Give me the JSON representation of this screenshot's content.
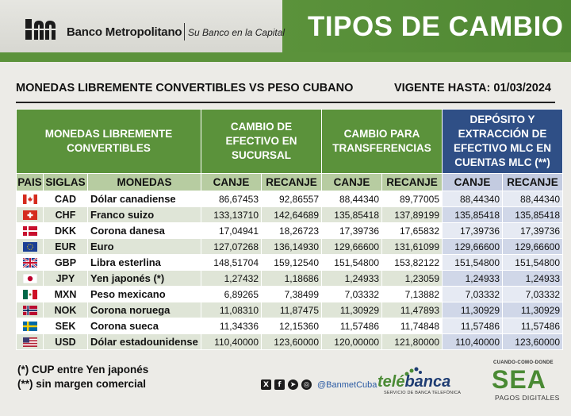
{
  "header": {
    "brand_name": "Banco Metropolitano",
    "brand_slogan": "Su Banco en la Capital",
    "page_title": "TIPOS DE CAMBIO",
    "accent_color": "#5b923b"
  },
  "subtitle": "MONEDAS LIBREMENTE CONVERTIBLES VS PESO CUBANO",
  "valid_until": "VIGENTE HASTA: 01/03/2024",
  "table": {
    "groups": {
      "currencies": "MONEDAS LIBREMENTE CONVERTIBLES",
      "cash": "CAMBIO DE EFECTIVO EN SUCURSAL",
      "transfers": "CAMBIO PARA TRANSFERENCIAS",
      "mlc": "DEPÓSITO Y EXTRACCIÓN DE EFECTIVO MLC EN CUENTAS MLC (**)"
    },
    "columns": {
      "country": "PAIS",
      "code": "SIGLAS",
      "currency": "MONEDAS",
      "buy": "CANJE",
      "sell": "RECANJE"
    },
    "rows": [
      {
        "flag": "canada-flag",
        "code": "CAD",
        "name": "Dólar canadiense",
        "cash_buy": "86,67453",
        "cash_sell": "92,86557",
        "tr_buy": "88,44340",
        "tr_sell": "89,77005",
        "mlc_buy": "88,44340",
        "mlc_sell": "88,44340"
      },
      {
        "flag": "switzerland-flag",
        "code": "CHF",
        "name": "Franco suizo",
        "cash_buy": "133,13710",
        "cash_sell": "142,64689",
        "tr_buy": "135,85418",
        "tr_sell": "137,89199",
        "mlc_buy": "135,85418",
        "mlc_sell": "135,85418"
      },
      {
        "flag": "denmark-flag",
        "code": "DKK",
        "name": "Corona danesa",
        "cash_buy": "17,04941",
        "cash_sell": "18,26723",
        "tr_buy": "17,39736",
        "tr_sell": "17,65832",
        "mlc_buy": "17,39736",
        "mlc_sell": "17,39736"
      },
      {
        "flag": "eu-flag",
        "code": "EUR",
        "name": "Euro",
        "cash_buy": "127,07268",
        "cash_sell": "136,14930",
        "tr_buy": "129,66600",
        "tr_sell": "131,61099",
        "mlc_buy": "129,66600",
        "mlc_sell": "129,66600"
      },
      {
        "flag": "uk-flag",
        "code": "GBP",
        "name": "Libra esterlina",
        "cash_buy": "148,51704",
        "cash_sell": "159,12540",
        "tr_buy": "151,54800",
        "tr_sell": "153,82122",
        "mlc_buy": "151,54800",
        "mlc_sell": "151,54800"
      },
      {
        "flag": "japan-flag",
        "code": "JPY",
        "name": "Yen japonés (*)",
        "cash_buy": "1,27432",
        "cash_sell": "1,18686",
        "tr_buy": "1,24933",
        "tr_sell": "1,23059",
        "mlc_buy": "1,24933",
        "mlc_sell": "1,24933"
      },
      {
        "flag": "mexico-flag",
        "code": "MXN",
        "name": "Peso mexicano",
        "cash_buy": "6,89265",
        "cash_sell": "7,38499",
        "tr_buy": "7,03332",
        "tr_sell": "7,13882",
        "mlc_buy": "7,03332",
        "mlc_sell": "7,03332"
      },
      {
        "flag": "norway-flag",
        "code": "NOK",
        "name": "Corona noruega",
        "cash_buy": "11,08310",
        "cash_sell": "11,87475",
        "tr_buy": "11,30929",
        "tr_sell": "11,47893",
        "mlc_buy": "11,30929",
        "mlc_sell": "11,30929"
      },
      {
        "flag": "sweden-flag",
        "code": "SEK",
        "name": "Corona sueca",
        "cash_buy": "11,34336",
        "cash_sell": "12,15360",
        "tr_buy": "11,57486",
        "tr_sell": "11,74848",
        "mlc_buy": "11,57486",
        "mlc_sell": "11,57486"
      },
      {
        "flag": "usa-flag",
        "code": "USD",
        "name": "Dólar estadounidense",
        "cash_buy": "110,40000",
        "cash_sell": "123,60000",
        "tr_buy": "120,00000",
        "tr_sell": "121,80000",
        "mlc_buy": "110,40000",
        "mlc_sell": "123,60000"
      }
    ]
  },
  "footer": {
    "note1": "(*) CUP entre Yen japonés",
    "note2": "(**) sin margen comercial",
    "social_icons": [
      "x-icon",
      "facebook-icon",
      "telegram-icon",
      "instagram-icon"
    ],
    "handle": "@BanmetCuba",
    "telebanca": {
      "part1": "telé",
      "part2": "banca",
      "sub": "SERVICIO DE BANCA TELEFÓNICA"
    },
    "sea": {
      "top": "CUANDO-COMO-DONDE",
      "word": "SEA",
      "bottom": "PAGOS DIGITALES"
    }
  }
}
